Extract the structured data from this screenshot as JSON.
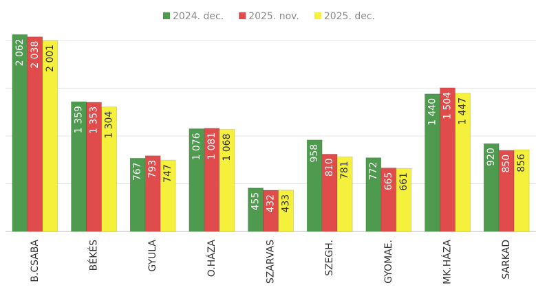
{
  "chart_data": {
    "type": "bar",
    "categories": [
      "B.CSABA",
      "BÉKÉS",
      "GYULA",
      "O.HÁZA",
      "SZARVAS",
      "SZEGH.",
      "GYOMAE.",
      "MK.HÁZA",
      "SARKAD"
    ],
    "series": [
      {
        "name": "2024. dec.",
        "color": "#4e9a4e",
        "values": [
          2062,
          1359,
          767,
          1076,
          455,
          958,
          772,
          1440,
          920
        ],
        "value_labels": [
          "2 062",
          "1 359",
          "767",
          "1 076",
          "455",
          "958",
          "772",
          "1 440",
          "920"
        ]
      },
      {
        "name": "2025. nov.",
        "color": "#e04b4b",
        "values": [
          2038,
          1353,
          793,
          1081,
          432,
          810,
          665,
          1504,
          850
        ],
        "value_labels": [
          "2 038",
          "1 353",
          "793",
          "1 081",
          "432",
          "810",
          "665",
          "1 504",
          "850"
        ]
      },
      {
        "name": "2025. dec.",
        "color": "#f4f03c",
        "values": [
          2001,
          1304,
          747,
          1068,
          433,
          781,
          661,
          1447,
          856
        ],
        "value_labels": [
          "2 001",
          "1 304",
          "747",
          "1 068",
          "433",
          "781",
          "661",
          "1 447",
          "856"
        ]
      }
    ],
    "ylim": [
      0,
      2100
    ],
    "yticks": [
      0,
      500,
      1000,
      1500,
      2000
    ],
    "grid": true,
    "legend": "top"
  }
}
